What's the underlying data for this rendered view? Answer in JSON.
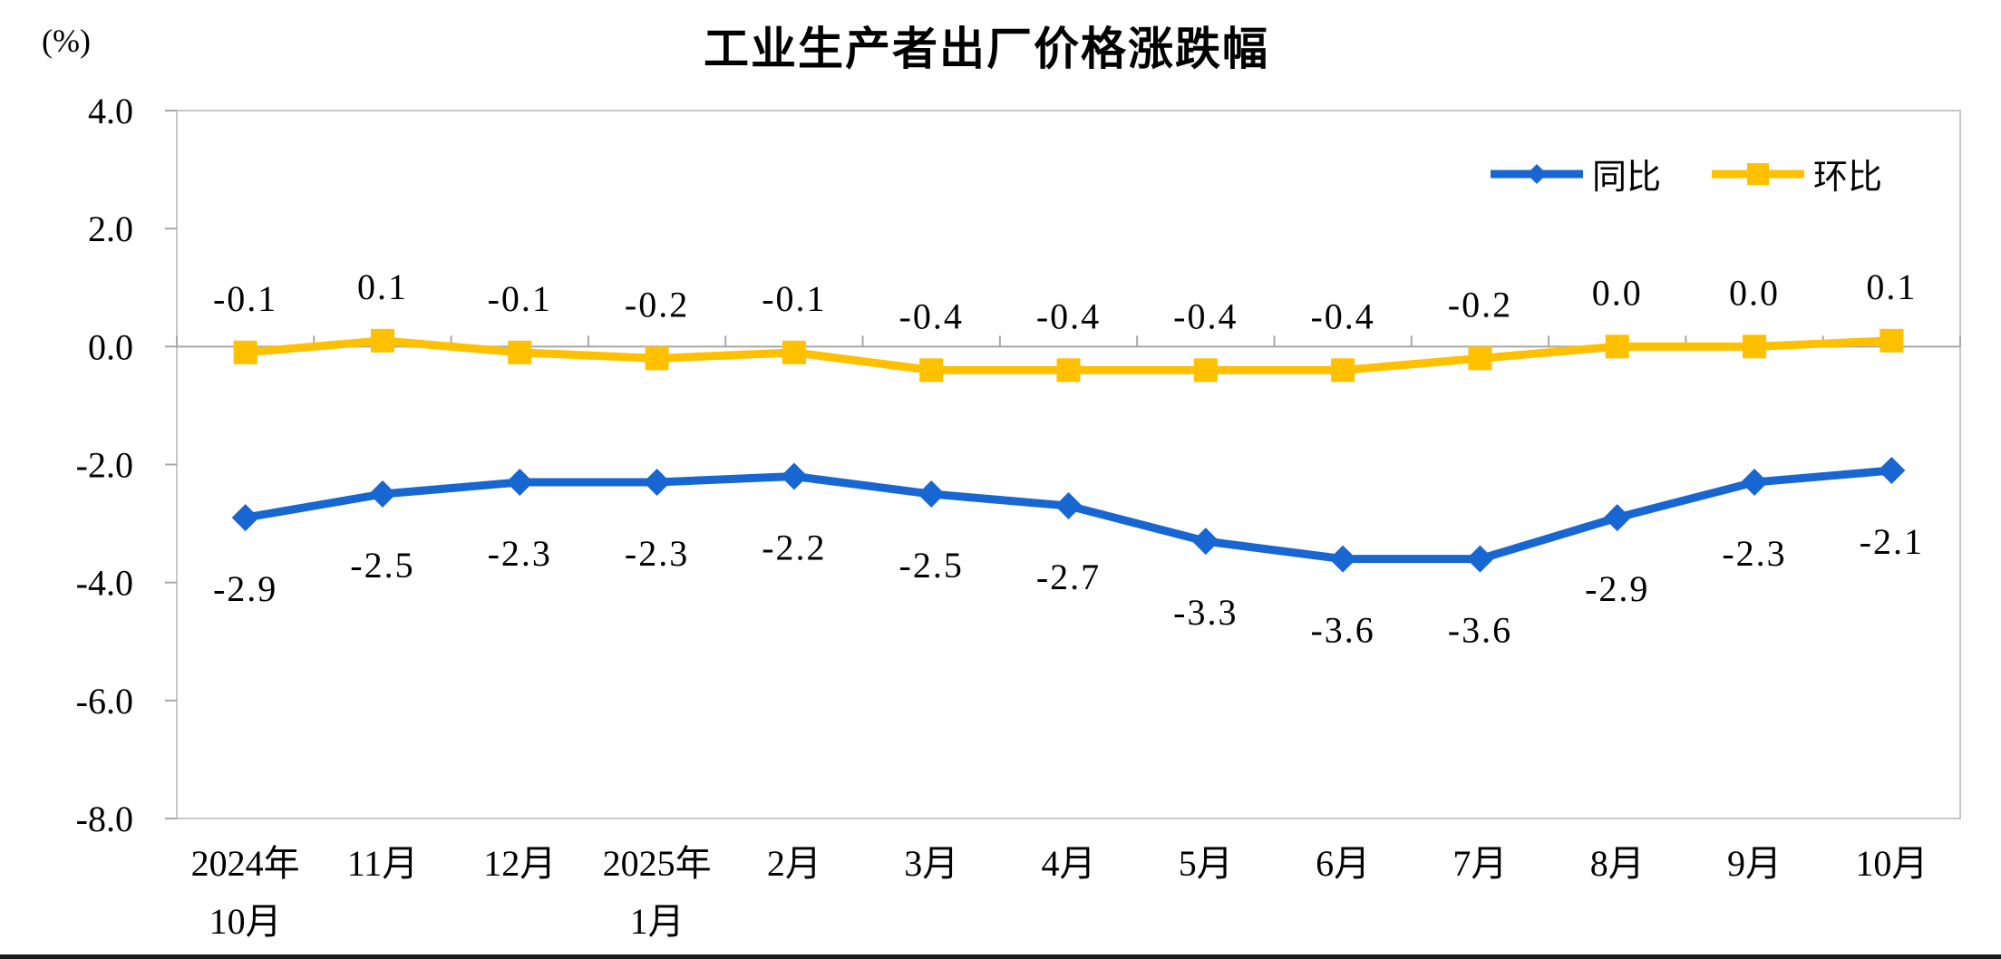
{
  "chart_data": {
    "type": "line",
    "title": "工业生产者出厂价格涨跌幅",
    "unit_label": "(%)",
    "x_categories": [
      [
        "2024年",
        "10月"
      ],
      [
        "11月"
      ],
      [
        "12月"
      ],
      [
        "2025年",
        "1月"
      ],
      [
        "2月"
      ],
      [
        "3月"
      ],
      [
        "4月"
      ],
      [
        "5月"
      ],
      [
        "6月"
      ],
      [
        "7月"
      ],
      [
        "8月"
      ],
      [
        "9月"
      ],
      [
        "10月"
      ]
    ],
    "series": [
      {
        "name": "同比",
        "marker": "diamond",
        "color": "#1766D2",
        "label_position": "below",
        "values": [
          -2.9,
          -2.5,
          -2.3,
          -2.3,
          -2.2,
          -2.5,
          -2.7,
          -3.3,
          -3.6,
          -3.6,
          -2.9,
          -2.3,
          -2.1
        ],
        "labels": [
          "-2.9",
          "-2.5",
          "-2.3",
          "-2.3",
          "-2.2",
          "-2.5",
          "-2.7",
          "-3.3",
          "-3.6",
          "-3.6",
          "-2.9",
          "-2.3",
          "-2.1"
        ]
      },
      {
        "name": "环比",
        "marker": "square",
        "color": "#FFC000",
        "label_position": "above",
        "values": [
          -0.1,
          0.1,
          -0.1,
          -0.2,
          -0.1,
          -0.4,
          -0.4,
          -0.4,
          -0.4,
          -0.2,
          0.0,
          0.0,
          0.1
        ],
        "labels": [
          "-0.1",
          "0.1",
          "-0.1",
          "-0.2",
          "-0.1",
          "-0.4",
          "-0.4",
          "-0.4",
          "-0.4",
          "-0.2",
          "0.0",
          "0.0",
          "0.1"
        ]
      }
    ],
    "y_ticks": [
      "4.0",
      "2.0",
      "0.0",
      "-2.0",
      "-4.0",
      "-6.0",
      "-8.0"
    ],
    "ylim": [
      -8,
      4
    ],
    "legend_position": "top-right-inside",
    "grid": "zero-line-only",
    "border_color": "#C8C8C8",
    "axis_color": "#A8A8A8",
    "text_color": "#000000",
    "background_color": "#FFFFFF"
  }
}
